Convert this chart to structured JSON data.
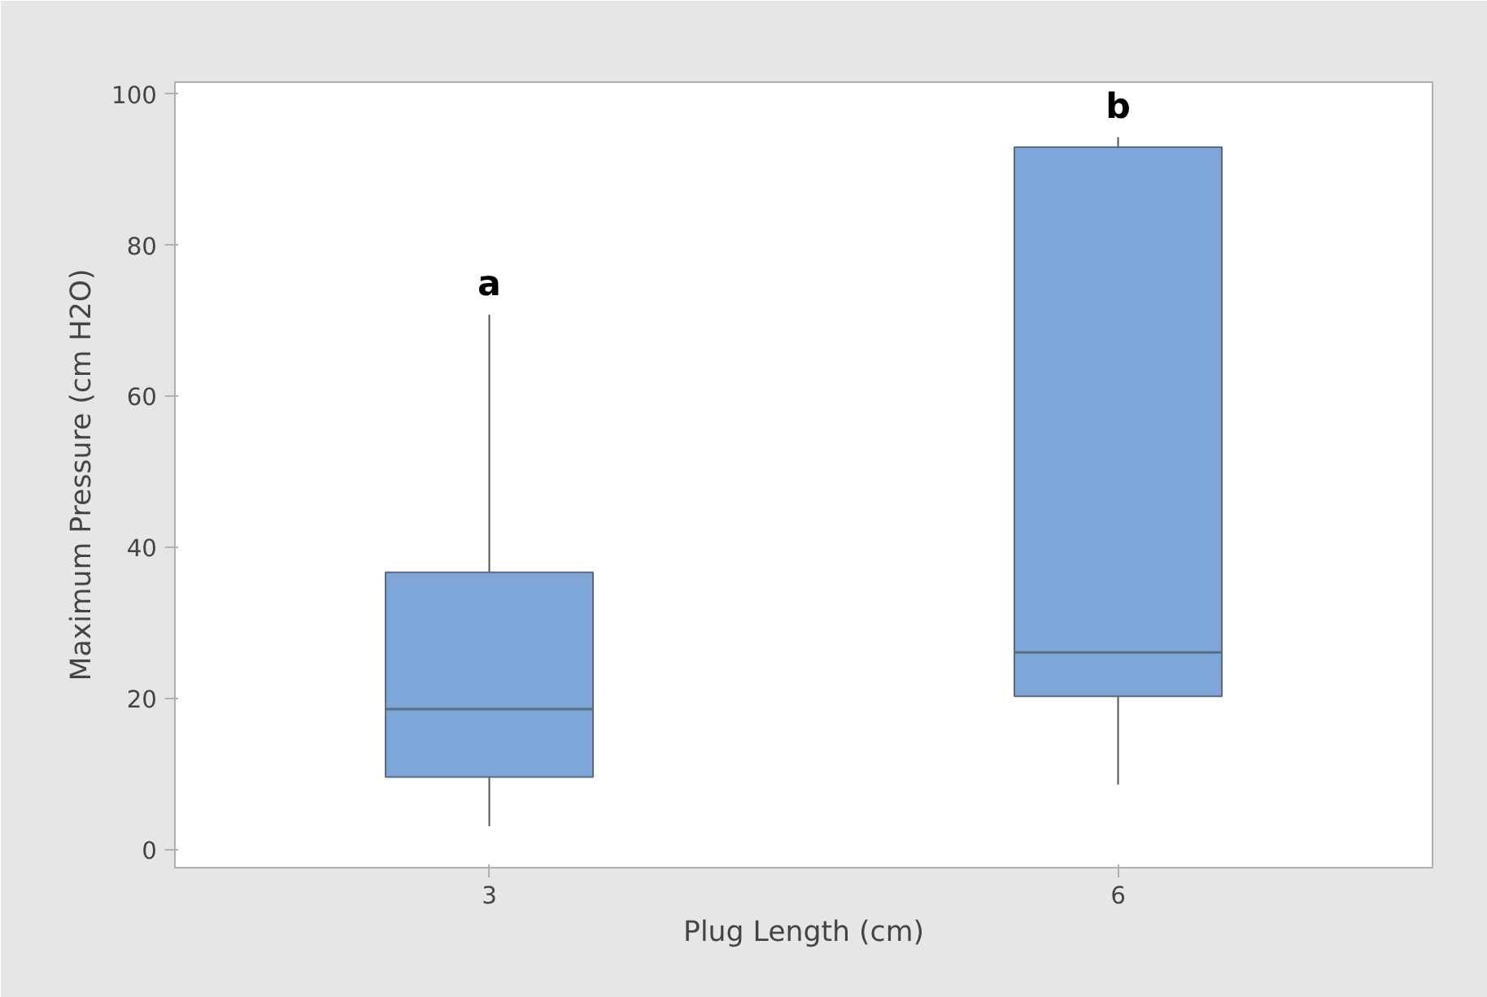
{
  "chart_data": {
    "type": "box",
    "xlabel": "Plug Length (cm)",
    "ylabel": "Maximum Pressure (cm H2O)",
    "categories": [
      "3",
      "6"
    ],
    "boxes": [
      {
        "low": 3.1,
        "q1": 9.6,
        "median": 18.6,
        "q3": 36.7,
        "high": 70.8
      },
      {
        "low": 8.6,
        "q1": 20.3,
        "median": 26.1,
        "q3": 93.0,
        "high": 94.3
      }
    ],
    "color": "#7ea6d8",
    "ylim": [
      -2.4,
      101.6
    ],
    "yticks": [
      0,
      20,
      40,
      60,
      80,
      100
    ],
    "grid": false,
    "annotations": [
      "a",
      "b"
    ]
  }
}
